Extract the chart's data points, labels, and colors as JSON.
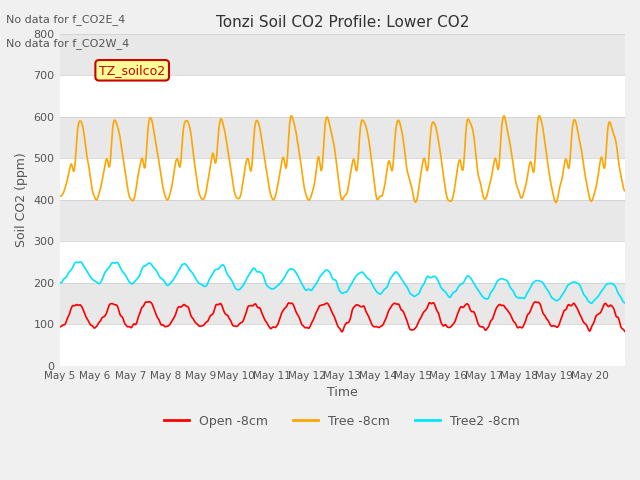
{
  "title": "Tonzi Soil CO2 Profile: Lower CO2",
  "annotations": [
    "No data for f_CO2E_4",
    "No data for f_CO2W_4"
  ],
  "legend_label": "TZ_soilco2",
  "xlabel": "Time",
  "ylabel": "Soil CO2 (ppm)",
  "ylim": [
    0,
    800
  ],
  "yticks": [
    0,
    100,
    200,
    300,
    400,
    500,
    600,
    700,
    800
  ],
  "series": {
    "open": {
      "label": "Open -8cm",
      "color": "#ff0000"
    },
    "tree": {
      "label": "Tree -8cm",
      "color": "#ffa500"
    },
    "tree2": {
      "label": "Tree2 -8cm",
      "color": "#00e5ff"
    }
  },
  "xtick_labels": [
    "May 5",
    "May 6",
    "May 7",
    "May 8",
    "May 9",
    "May 10",
    "May 11",
    "May 12",
    "May 13",
    "May 14",
    "May 15",
    "May 16",
    "May 17",
    "May 18",
    "May 19",
    "May 20"
  ],
  "background_color": "#f0f0f0",
  "plot_bg_color": "#e8e8e8",
  "band_colors": [
    "#ffffff",
    "#e8e8e8"
  ],
  "grid_color": "#cccccc",
  "linewidth": 1.2,
  "n_days": 16,
  "points_per_day": 48
}
